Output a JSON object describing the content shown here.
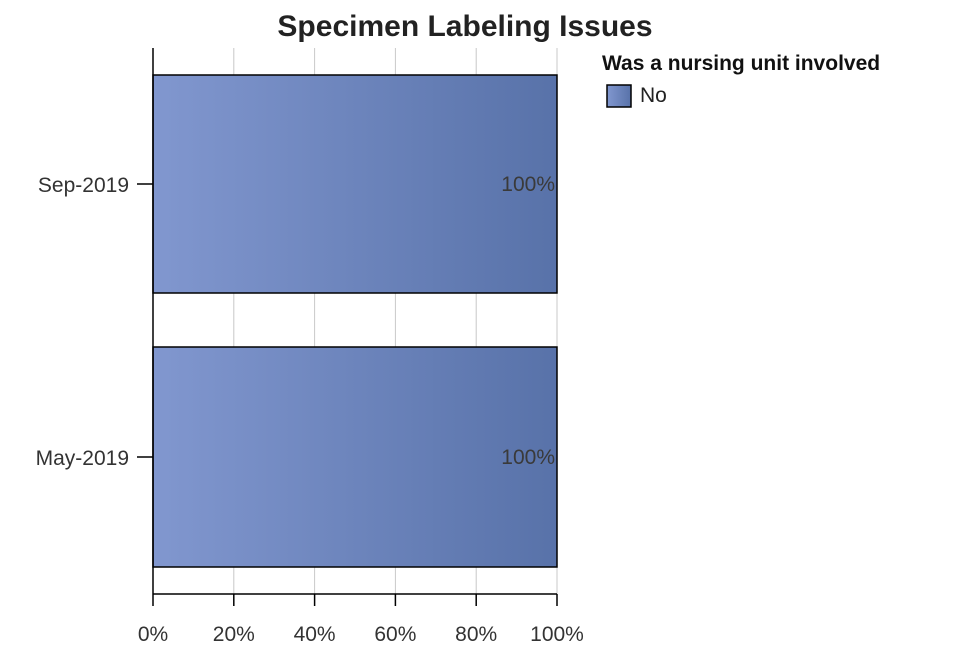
{
  "chart_data": {
    "type": "bar",
    "orientation": "horizontal",
    "title": "Specimen Labeling Issues",
    "categories": [
      "Sep-2019",
      "May-2019"
    ],
    "series": [
      {
        "name": "No",
        "values": [
          100,
          100
        ],
        "labels": [
          "100%",
          "100%"
        ],
        "color": "#6b84bd"
      }
    ],
    "xlim": [
      0,
      100
    ],
    "x_ticks": [
      "0%",
      "20%",
      "40%",
      "60%",
      "80%",
      "100%"
    ],
    "xlabel": "",
    "ylabel": "",
    "stacked_percent": true,
    "grid": true,
    "legend": {
      "title": "Was a nursing unit involved",
      "placement": "top-right",
      "items": [
        "No"
      ]
    }
  }
}
